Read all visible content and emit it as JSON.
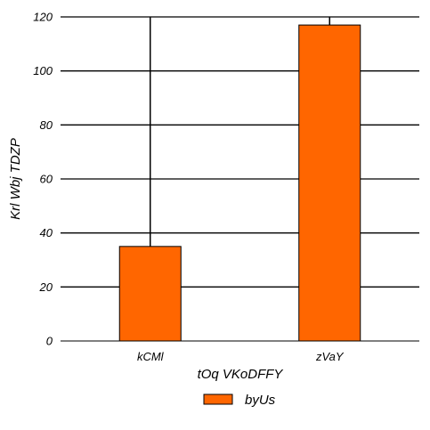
{
  "chart_data": {
    "type": "bar",
    "categories": [
      "kCMl",
      "zVaY"
    ],
    "series": [
      {
        "name": "byUs",
        "values": [
          35,
          117
        ],
        "error_upper": [
          120,
          120
        ]
      }
    ],
    "xlabel": "tOq VKoDFFY",
    "ylabel": "Krl Wbj  TDZP",
    "ylim": [
      0,
      120
    ],
    "yticks": [
      0,
      20,
      40,
      60,
      80,
      100,
      120
    ],
    "grid": "horizontal",
    "legend_position": "bottom-center",
    "colors": {
      "bar": "#ff6600",
      "bar_edge": "#000000",
      "grid": "#000000"
    }
  }
}
